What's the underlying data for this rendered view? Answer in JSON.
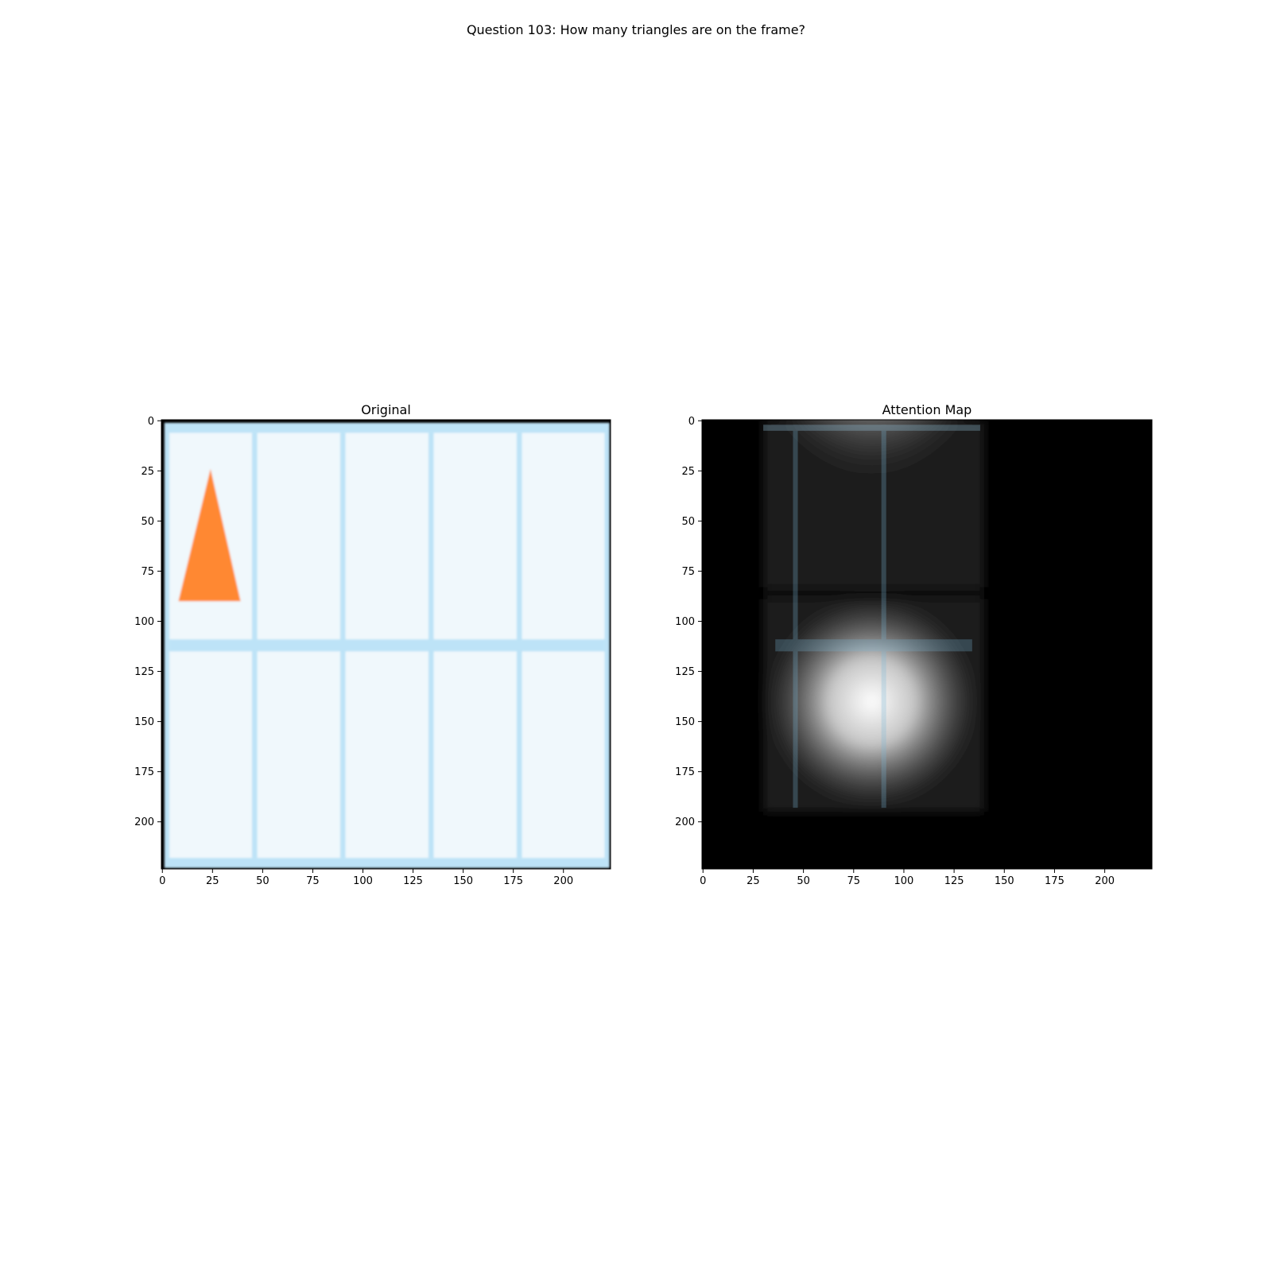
{
  "figure": {
    "suptitle": "Question 103: How many triangles are on the frame?"
  },
  "chart_data": [
    {
      "type": "image",
      "title": "Original",
      "xlim": [
        -0.5,
        223.5
      ],
      "ylim": [
        223.5,
        -0.5
      ],
      "xticks": [
        0,
        25,
        50,
        75,
        100,
        125,
        150,
        175,
        200
      ],
      "yticks": [
        0,
        25,
        50,
        75,
        100,
        125,
        150,
        175,
        200
      ],
      "content": {
        "background": "#f0f8fc",
        "border_color": "#000000",
        "divider_color": "#bde3f7",
        "frame_outer": [
          1,
          1,
          223,
          223
        ],
        "vertical_dividers_x": [
          46,
          90,
          134,
          178
        ],
        "horizontal_divider_y": 112,
        "triangle": {
          "color": "#ff8833",
          "vertices": [
            [
              24,
              24
            ],
            [
              8,
              90
            ],
            [
              39,
              90
            ]
          ]
        }
      }
    },
    {
      "type": "heatmap",
      "title": "Attention Map",
      "xlim": [
        -0.5,
        223.5
      ],
      "ylim": [
        223.5,
        -0.5
      ],
      "xticks": [
        0,
        25,
        50,
        75,
        100,
        125,
        150,
        175,
        200
      ],
      "yticks": [
        0,
        25,
        50,
        75,
        100,
        125,
        150,
        175,
        200
      ],
      "colormap": "gray",
      "hotspots": [
        {
          "x": 84,
          "y": 5,
          "spread_x": 50,
          "spread_y": 70,
          "intensity": 1.0
        },
        {
          "x": 84,
          "y": 140,
          "spread_x": 55,
          "spread_y": 55,
          "intensity": 1.0
        }
      ],
      "active_region_x": [
        30,
        140
      ],
      "active_region_y": [
        0,
        195
      ]
    }
  ]
}
